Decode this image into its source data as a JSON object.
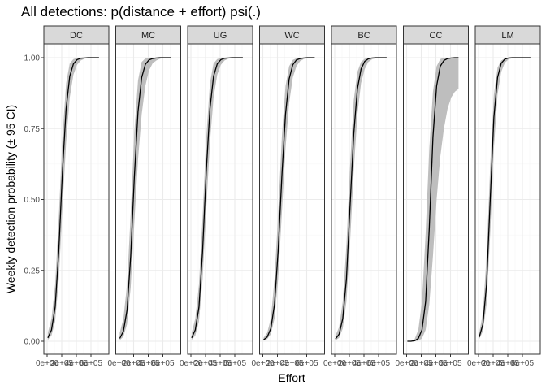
{
  "chart_data": {
    "type": "line",
    "title": "All detections: p(distance + effort) psi(.)",
    "xlabel": "Effort",
    "ylabel": "Weekly detection probability (± 95 CI)",
    "ylim": [
      0,
      1
    ],
    "xlim": [
      0,
      800000
    ],
    "yticks": [
      0.0,
      0.25,
      0.5,
      0.75,
      1.0
    ],
    "ytick_labels": [
      "0.00",
      "0.25",
      "0.50",
      "0.75",
      "1.00"
    ],
    "xticks": [
      0,
      200000,
      400000,
      600000
    ],
    "xtick_labels": [
      "0e+00",
      "2e+05",
      "4e+05",
      "6e+05"
    ],
    "grid": true,
    "panels": [
      {
        "name": "DC",
        "x": [
          10000,
          60000,
          110000,
          160000,
          210000,
          260000,
          310000,
          360000,
          410000,
          460000,
          510000,
          560000,
          610000,
          660000,
          710000
        ],
        "y": [
          0.012,
          0.04,
          0.12,
          0.32,
          0.6,
          0.82,
          0.935,
          0.978,
          0.993,
          0.998,
          0.999,
          1.0,
          1.0,
          1.0,
          1.0
        ],
        "lower": [
          0.005,
          0.02,
          0.07,
          0.22,
          0.47,
          0.7,
          0.86,
          0.94,
          0.975,
          0.99,
          0.996,
          0.999,
          1.0,
          1.0,
          1.0
        ],
        "upper": [
          0.03,
          0.08,
          0.2,
          0.44,
          0.72,
          0.91,
          0.98,
          0.995,
          0.999,
          1.0,
          1.0,
          1.0,
          1.0,
          1.0,
          1.0
        ]
      },
      {
        "name": "MC",
        "x": [
          10000,
          60000,
          110000,
          160000,
          210000,
          260000,
          310000,
          360000,
          410000,
          460000,
          510000,
          560000,
          610000,
          660000,
          710000
        ],
        "y": [
          0.01,
          0.035,
          0.11,
          0.3,
          0.58,
          0.81,
          0.93,
          0.976,
          0.992,
          0.997,
          0.999,
          1.0,
          1.0,
          1.0,
          1.0
        ],
        "lower": [
          0.004,
          0.016,
          0.06,
          0.19,
          0.42,
          0.64,
          0.8,
          0.9,
          0.955,
          0.98,
          0.99,
          0.996,
          0.999,
          1.0,
          1.0
        ],
        "upper": [
          0.03,
          0.08,
          0.2,
          0.45,
          0.74,
          0.92,
          0.985,
          0.997,
          1.0,
          1.0,
          1.0,
          1.0,
          1.0,
          1.0,
          1.0
        ]
      },
      {
        "name": "UG",
        "x": [
          10000,
          60000,
          110000,
          160000,
          210000,
          260000,
          310000,
          360000,
          410000,
          460000,
          510000,
          560000,
          610000,
          660000,
          710000
        ],
        "y": [
          0.012,
          0.04,
          0.12,
          0.32,
          0.6,
          0.82,
          0.935,
          0.978,
          0.993,
          0.998,
          0.999,
          1.0,
          1.0,
          1.0,
          1.0
        ],
        "lower": [
          0.005,
          0.02,
          0.07,
          0.22,
          0.47,
          0.7,
          0.86,
          0.94,
          0.975,
          0.99,
          0.996,
          0.999,
          1.0,
          1.0,
          1.0
        ],
        "upper": [
          0.03,
          0.08,
          0.2,
          0.44,
          0.72,
          0.91,
          0.98,
          0.995,
          0.999,
          1.0,
          1.0,
          1.0,
          1.0,
          1.0,
          1.0
        ]
      },
      {
        "name": "WC",
        "x": [
          10000,
          60000,
          110000,
          160000,
          210000,
          260000,
          310000,
          360000,
          410000,
          460000,
          510000,
          560000,
          610000,
          660000,
          710000
        ],
        "y": [
          0.005,
          0.015,
          0.045,
          0.13,
          0.32,
          0.58,
          0.8,
          0.925,
          0.975,
          0.992,
          0.997,
          0.999,
          1.0,
          1.0,
          1.0
        ],
        "lower": [
          0.002,
          0.008,
          0.025,
          0.08,
          0.22,
          0.45,
          0.68,
          0.84,
          0.93,
          0.97,
          0.988,
          0.995,
          0.998,
          1.0,
          1.0
        ],
        "upper": [
          0.012,
          0.03,
          0.08,
          0.22,
          0.45,
          0.72,
          0.9,
          0.97,
          0.992,
          0.998,
          1.0,
          1.0,
          1.0,
          1.0,
          1.0
        ]
      },
      {
        "name": "BC",
        "x": [
          10000,
          60000,
          110000,
          160000,
          210000,
          260000,
          310000,
          360000,
          410000,
          460000,
          510000,
          560000,
          610000,
          660000,
          710000
        ],
        "y": [
          0.008,
          0.025,
          0.08,
          0.22,
          0.48,
          0.73,
          0.89,
          0.96,
          0.987,
          0.996,
          0.999,
          1.0,
          1.0,
          1.0,
          1.0
        ],
        "lower": [
          0.003,
          0.012,
          0.045,
          0.14,
          0.35,
          0.6,
          0.8,
          0.91,
          0.96,
          0.985,
          0.994,
          0.998,
          1.0,
          1.0,
          1.0
        ],
        "upper": [
          0.02,
          0.05,
          0.14,
          0.34,
          0.62,
          0.85,
          0.95,
          0.985,
          0.996,
          0.999,
          1.0,
          1.0,
          1.0,
          1.0,
          1.0
        ]
      },
      {
        "name": "CC",
        "x": [
          10000,
          60000,
          110000,
          160000,
          210000,
          260000,
          310000,
          360000,
          410000,
          460000,
          510000,
          560000,
          610000,
          660000,
          710000
        ],
        "y": [
          0.0,
          0.0,
          0.002,
          0.01,
          0.04,
          0.14,
          0.4,
          0.72,
          0.9,
          0.97,
          0.99,
          0.997,
          0.999,
          1.0,
          1.0
        ],
        "lower": [
          0.0,
          0.0,
          0.0,
          0.002,
          0.01,
          0.04,
          0.13,
          0.3,
          0.5,
          0.65,
          0.75,
          0.82,
          0.86,
          0.88,
          0.89
        ],
        "upper": [
          0.0,
          0.001,
          0.008,
          0.04,
          0.14,
          0.38,
          0.68,
          0.88,
          0.97,
          0.995,
          1.0,
          1.0,
          1.0,
          1.0,
          1.0
        ]
      },
      {
        "name": "LM",
        "x": [
          10000,
          60000,
          110000,
          160000,
          210000,
          260000,
          310000,
          360000,
          410000,
          460000,
          510000,
          560000,
          610000,
          660000,
          710000
        ],
        "y": [
          0.015,
          0.06,
          0.2,
          0.5,
          0.79,
          0.93,
          0.98,
          0.995,
          0.999,
          1.0,
          1.0,
          1.0,
          1.0,
          1.0,
          1.0
        ],
        "lower": [
          0.008,
          0.035,
          0.13,
          0.38,
          0.68,
          0.87,
          0.95,
          0.982,
          0.994,
          0.998,
          1.0,
          1.0,
          1.0,
          1.0,
          1.0
        ],
        "upper": [
          0.03,
          0.1,
          0.3,
          0.62,
          0.87,
          0.965,
          0.99,
          0.998,
          1.0,
          1.0,
          1.0,
          1.0,
          1.0,
          1.0,
          1.0
        ]
      }
    ]
  },
  "colors": {
    "ribbon": "#bebebe",
    "line": "#000000",
    "strip_fill": "#d9d9d9",
    "strip_border": "#333333",
    "panel_border": "#333333",
    "grid_major": "#ebebeb",
    "grid_minor": "#f5f5f5"
  }
}
